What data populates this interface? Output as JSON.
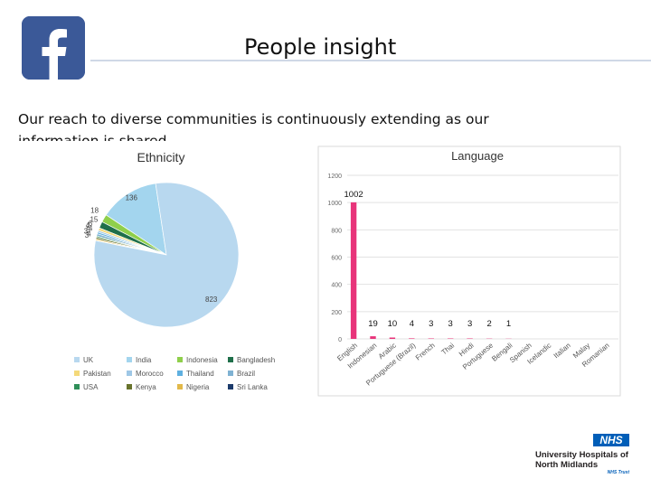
{
  "header": {
    "title": "People insight",
    "subtitle": "Our reach to diverse communities is continuously extending as our information is shared.",
    "logo_icon": "facebook-icon",
    "logo_color": "#3b5998"
  },
  "footer": {
    "org_badge": "NHS",
    "org_name": "University Hospitals of North Midlands",
    "org_suffix": "NHS Trust",
    "badge_color": "#005eb8"
  },
  "chart_data": [
    {
      "type": "pie",
      "title": "Ethnicity",
      "categories": [
        "UK",
        "India",
        "Indonesia",
        "Bangladesh",
        "Pakistan",
        "Morocco",
        "Thailand",
        "Brazil",
        "USA",
        "Kenya",
        "Nigeria",
        "Sri Lanka"
      ],
      "colors": [
        "#b8d8ef",
        "#a3d5ee",
        "#8fcf4b",
        "#1f6f4a",
        "#f4d97a",
        "#9ec7e6",
        "#5fb0e0",
        "#7fb2d3",
        "#2f8f59",
        "#68732c",
        "#e2b94a",
        "#1c3b6b"
      ],
      "values": [
        823,
        136,
        18,
        15,
        6,
        4,
        4,
        5,
        3,
        4,
        3,
        1
      ],
      "data_labels": [
        "823",
        "136",
        "18",
        "15",
        "6",
        "4",
        "4",
        "5",
        "3",
        "4",
        "3",
        ""
      ],
      "legend": "bottom"
    },
    {
      "type": "bar",
      "title": "Language",
      "categories": [
        "English",
        "Indonesian",
        "Arabic",
        "Portuguese (Brazil)",
        "French",
        "Thai",
        "Hindi",
        "Portuguese",
        "Bengali",
        "Spanish",
        "Icelandic",
        "Italian",
        "Malay",
        "Romanian"
      ],
      "values": [
        1002,
        19,
        10,
        4,
        3,
        3,
        3,
        2,
        1,
        0,
        0,
        0,
        0,
        0
      ],
      "data_labels": [
        "1002",
        "19",
        "10",
        "4",
        "3",
        "3",
        "3",
        "2",
        "1",
        "",
        "",
        "",
        "",
        ""
      ],
      "ylim": [
        0,
        1200
      ],
      "yticks": [
        0,
        200,
        400,
        600,
        800,
        1000,
        1200
      ],
      "grid": true,
      "bar_color": "#e8347a"
    }
  ]
}
